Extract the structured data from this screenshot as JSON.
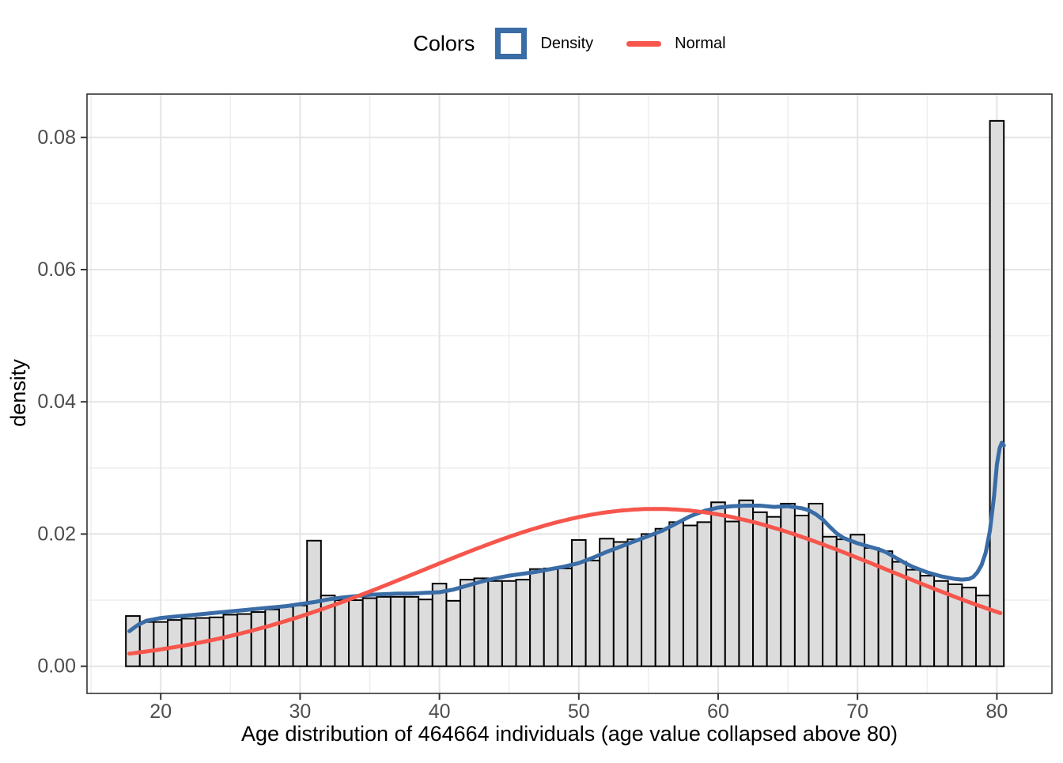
{
  "legend": {
    "title": "Colors",
    "items": [
      {
        "label": "Density",
        "key": "square-outline",
        "color": "#3A6CA6"
      },
      {
        "label": "Normal",
        "key": "line",
        "color": "#F6564C"
      }
    ]
  },
  "chart_data": {
    "type": "bar",
    "subtype": "histogram_with_density_and_normal_overlay",
    "title": "",
    "xlabel": "Age distribution of 464664 individuals (age value collapsed above 80)",
    "ylabel": "density",
    "x_tick_values": [
      20,
      30,
      40,
      50,
      60,
      70,
      80
    ],
    "x_tick_labels": [
      "20",
      "30",
      "40",
      "50",
      "60",
      "70",
      "80"
    ],
    "y_tick_values": [
      0,
      0.02,
      0.04,
      0.06,
      0.08
    ],
    "y_tick_labels": [
      "0.00",
      "0.02",
      "0.04",
      "0.06",
      "0.08"
    ],
    "x_minor_gridlines": [
      15,
      25,
      35,
      45,
      55,
      65,
      75
    ],
    "y_minor_gridlines": [
      0.01,
      0.03,
      0.05,
      0.07
    ],
    "xlim": [
      14.71,
      83.95
    ],
    "ylim": [
      -0.00411,
      0.08655
    ],
    "grid": {
      "major_color": "#E4E4E4",
      "minor_color": "#EFEFEF",
      "background": "#FFFFFF",
      "border_color": "#333333"
    },
    "tick_color": "#333333",
    "tick_label_color": "#4D4D4D",
    "histogram": {
      "binwidth": 1,
      "fill": "#DCDCDC",
      "stroke": "#000000",
      "ages": [
        18,
        19,
        20,
        21,
        22,
        23,
        24,
        25,
        26,
        27,
        28,
        29,
        30,
        31,
        32,
        33,
        34,
        35,
        36,
        37,
        38,
        39,
        40,
        41,
        42,
        43,
        44,
        45,
        46,
        47,
        48,
        49,
        50,
        51,
        52,
        53,
        54,
        55,
        56,
        57,
        58,
        59,
        60,
        61,
        62,
        63,
        64,
        65,
        66,
        67,
        68,
        69,
        70,
        71,
        72,
        73,
        74,
        75,
        76,
        77,
        78,
        79,
        80
      ],
      "densities": [
        0.0076,
        0.0067,
        0.0067,
        0.007,
        0.0072,
        0.0073,
        0.0074,
        0.0078,
        0.0079,
        0.0082,
        0.0086,
        0.009,
        0.0092,
        0.019,
        0.0107,
        0.01,
        0.01,
        0.0103,
        0.0105,
        0.0105,
        0.0105,
        0.0101,
        0.0125,
        0.0099,
        0.0131,
        0.0133,
        0.0129,
        0.0129,
        0.0131,
        0.0147,
        0.0148,
        0.0148,
        0.0191,
        0.016,
        0.0193,
        0.0188,
        0.0192,
        0.02,
        0.0208,
        0.0218,
        0.0213,
        0.0218,
        0.0248,
        0.0219,
        0.0251,
        0.0233,
        0.0226,
        0.0246,
        0.0228,
        0.0246,
        0.0196,
        0.0192,
        0.0199,
        0.0179,
        0.0174,
        0.0158,
        0.0146,
        0.0137,
        0.0129,
        0.0124,
        0.0119,
        0.0107,
        0.0825
      ]
    },
    "series": [
      {
        "name": "Density",
        "type": "density_curve",
        "color": "#3A6CA6",
        "stroke_width": 5,
        "points": [
          [
            17.75,
            0.0053
          ],
          [
            18,
            0.0057
          ],
          [
            18.4,
            0.0063
          ],
          [
            19,
            0.0069
          ],
          [
            19.5,
            0.0071
          ],
          [
            20,
            0.0073
          ],
          [
            21,
            0.0075
          ],
          [
            22,
            0.0077
          ],
          [
            23,
            0.0079
          ],
          [
            24,
            0.0081
          ],
          [
            25,
            0.0083
          ],
          [
            26,
            0.0085
          ],
          [
            27,
            0.0087
          ],
          [
            28,
            0.0089
          ],
          [
            29,
            0.0091
          ],
          [
            30,
            0.0094
          ],
          [
            31,
            0.0097
          ],
          [
            32,
            0.0101
          ],
          [
            33,
            0.0104
          ],
          [
            34,
            0.0106
          ],
          [
            35,
            0.0108
          ],
          [
            36,
            0.0109
          ],
          [
            37,
            0.011
          ],
          [
            38,
            0.011
          ],
          [
            39,
            0.0111
          ],
          [
            40,
            0.0112
          ],
          [
            41,
            0.0116
          ],
          [
            42,
            0.0122
          ],
          [
            43,
            0.0128
          ],
          [
            44,
            0.0133
          ],
          [
            45,
            0.0137
          ],
          [
            46,
            0.014
          ],
          [
            47,
            0.0143
          ],
          [
            48,
            0.0147
          ],
          [
            49,
            0.0151
          ],
          [
            50,
            0.0156
          ],
          [
            51,
            0.0164
          ],
          [
            52,
            0.0173
          ],
          [
            53,
            0.0181
          ],
          [
            54,
            0.0189
          ],
          [
            55,
            0.0197
          ],
          [
            56,
            0.0205
          ],
          [
            57,
            0.0216
          ],
          [
            58,
            0.0227
          ],
          [
            59,
            0.0235
          ],
          [
            60,
            0.024
          ],
          [
            61,
            0.0242
          ],
          [
            62,
            0.0243
          ],
          [
            63,
            0.0243
          ],
          [
            64,
            0.0241
          ],
          [
            65,
            0.0242
          ],
          [
            66,
            0.0239
          ],
          [
            66.5,
            0.0236
          ],
          [
            67,
            0.023
          ],
          [
            67.5,
            0.0222
          ],
          [
            68,
            0.0211
          ],
          [
            68.5,
            0.0201
          ],
          [
            69,
            0.0194
          ],
          [
            69.5,
            0.019
          ],
          [
            70,
            0.0186
          ],
          [
            70.5,
            0.0183
          ],
          [
            71,
            0.018
          ],
          [
            71.5,
            0.0177
          ],
          [
            72,
            0.0173
          ],
          [
            72.5,
            0.0167
          ],
          [
            73,
            0.0161
          ],
          [
            73.5,
            0.0155
          ],
          [
            74,
            0.015
          ],
          [
            74.5,
            0.0146
          ],
          [
            75,
            0.0142
          ],
          [
            75.5,
            0.0139
          ],
          [
            76,
            0.0136
          ],
          [
            76.5,
            0.0134
          ],
          [
            77,
            0.0132
          ],
          [
            77.5,
            0.0131
          ],
          [
            78,
            0.0132
          ],
          [
            78.3,
            0.0135
          ],
          [
            78.6,
            0.0142
          ],
          [
            78.9,
            0.0153
          ],
          [
            79.2,
            0.0172
          ],
          [
            79.5,
            0.0205
          ],
          [
            79.8,
            0.0258
          ],
          [
            80,
            0.0305
          ],
          [
            80.2,
            0.033
          ],
          [
            80.35,
            0.0338
          ],
          [
            80.5,
            0.0334
          ]
        ]
      },
      {
        "name": "Normal",
        "type": "normal_curve",
        "color": "#F6564C",
        "stroke_width": 5,
        "mean": 55.5,
        "sd": 16.8,
        "peak_density": 0.0238,
        "x_start": 17.75,
        "x_end": 80.4
      }
    ]
  }
}
